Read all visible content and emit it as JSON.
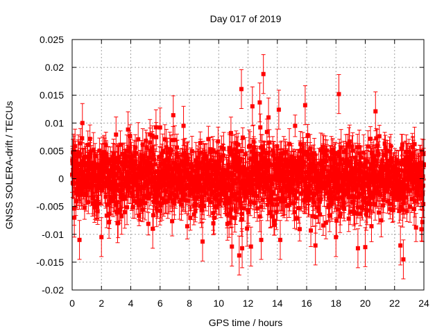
{
  "chart_data": {
    "type": "scatter",
    "title": "Day 017 of 2019",
    "xlabel": "GPS time / hours",
    "ylabel": "GNSS SOLERA-drift / TECUs",
    "xlim": [
      0,
      24
    ],
    "ylim": [
      -0.02,
      0.025
    ],
    "x_ticks": [
      0,
      2,
      4,
      6,
      8,
      10,
      12,
      14,
      16,
      18,
      20,
      22,
      24
    ],
    "x_tick_labels": [
      "0",
      "2",
      "4",
      "6",
      "8",
      "10",
      "12",
      "14",
      "16",
      "18",
      "20",
      "22",
      "24"
    ],
    "y_ticks": [
      -0.02,
      -0.015,
      -0.01,
      -0.005,
      0,
      0.005,
      0.01,
      0.015,
      0.02,
      0.025
    ],
    "y_tick_labels": [
      "-0.02",
      "-0.015",
      "-0.01",
      "-0.005",
      "0",
      "0.005",
      "0.01",
      "0.015",
      "0.02",
      "0.025"
    ],
    "grid": true,
    "series": [
      {
        "name": "SOLERA-drift",
        "color": "#ff0000",
        "marker": "square",
        "error_bars": true,
        "typical_error": 0.0025,
        "notable_points": [
          {
            "x": 0.1,
            "y": 0.0045
          },
          {
            "x": 0.15,
            "y": -0.007
          },
          {
            "x": 0.5,
            "y": -0.011
          },
          {
            "x": 0.7,
            "y": 0.01
          },
          {
            "x": 2.0,
            "y": -0.0105
          },
          {
            "x": 3.1,
            "y": -0.008
          },
          {
            "x": 5.5,
            "y": -0.009
          },
          {
            "x": 6.0,
            "y": 0.0092
          },
          {
            "x": 6.9,
            "y": 0.0114
          },
          {
            "x": 7.6,
            "y": 0.0095
          },
          {
            "x": 8.9,
            "y": -0.0113
          },
          {
            "x": 10.9,
            "y": -0.0122
          },
          {
            "x": 11.4,
            "y": -0.0138
          },
          {
            "x": 11.55,
            "y": 0.0161
          },
          {
            "x": 11.6,
            "y": -0.0125
          },
          {
            "x": 12.2,
            "y": -0.0122
          },
          {
            "x": 12.3,
            "y": 0.013
          },
          {
            "x": 12.8,
            "y": 0.0137
          },
          {
            "x": 12.9,
            "y": -0.011
          },
          {
            "x": 13.05,
            "y": 0.0188
          },
          {
            "x": 13.4,
            "y": 0.011
          },
          {
            "x": 14.1,
            "y": 0.0124
          },
          {
            "x": 14.2,
            "y": -0.011
          },
          {
            "x": 15.9,
            "y": 0.0132
          },
          {
            "x": 16.6,
            "y": -0.012
          },
          {
            "x": 18.0,
            "y": -0.0105
          },
          {
            "x": 18.2,
            "y": 0.0152
          },
          {
            "x": 19.5,
            "y": -0.0125
          },
          {
            "x": 20.0,
            "y": -0.0123
          },
          {
            "x": 20.7,
            "y": 0.0121
          },
          {
            "x": 22.4,
            "y": -0.012
          },
          {
            "x": 22.6,
            "y": -0.0145
          },
          {
            "x": 23.9,
            "y": -0.0078
          }
        ]
      }
    ]
  }
}
